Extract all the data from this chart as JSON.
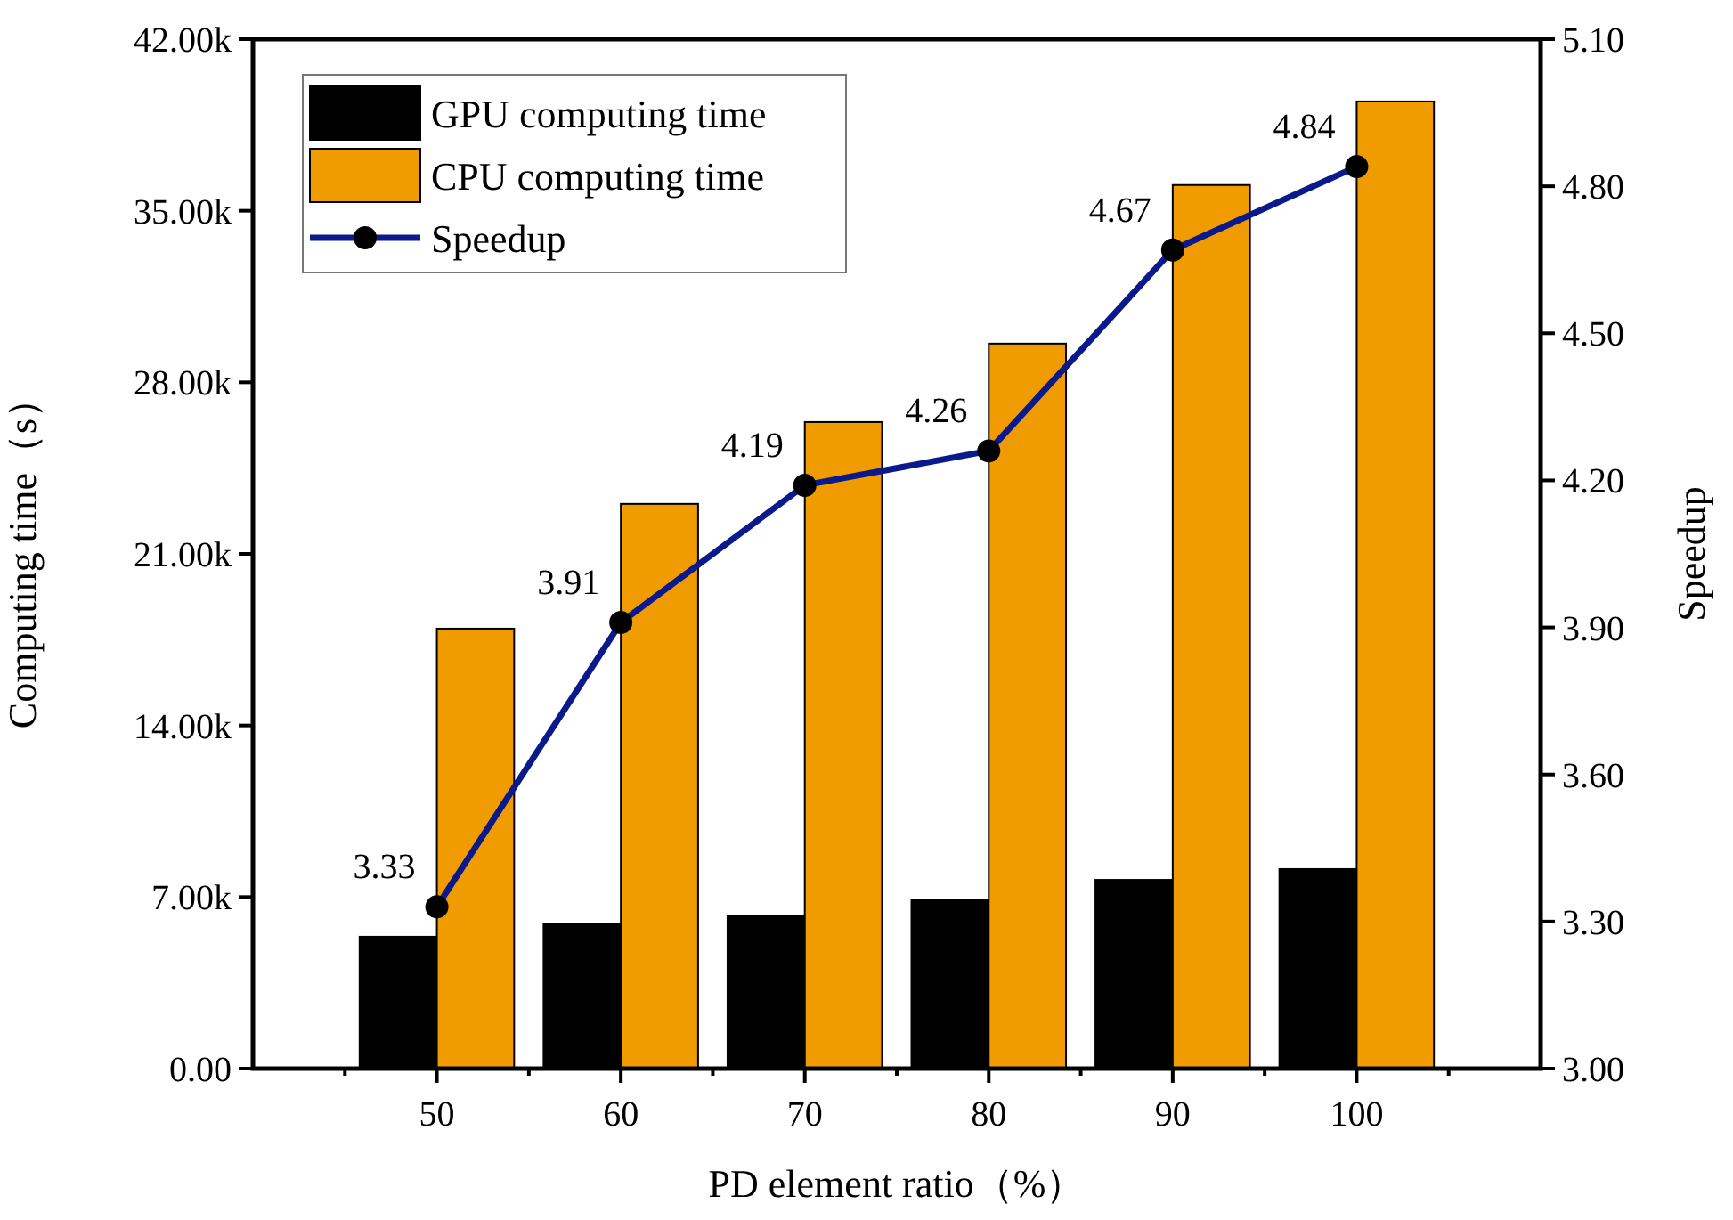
{
  "chart_data": {
    "type": "bar",
    "xlabel": "PD element ratio（%）",
    "ylabel": "Computing time（s）",
    "y2label": "Speedup",
    "x": [
      50,
      60,
      70,
      80,
      90,
      100
    ],
    "xlim": [
      40,
      110
    ],
    "xticks": [
      {
        "value": 45,
        "label": null
      },
      50,
      {
        "value": 55,
        "label": null
      },
      60,
      {
        "value": 65,
        "label": null
      },
      70,
      {
        "value": 75,
        "label": null
      },
      80,
      {
        "value": 85,
        "label": null
      },
      90,
      {
        "value": 95,
        "label": null
      },
      100,
      {
        "value": 105,
        "label": null
      }
    ],
    "ylim": [
      0,
      42000
    ],
    "yticks": [
      {
        "value": 0,
        "label": "0.00"
      },
      {
        "value": 7000,
        "label": "7.00k"
      },
      {
        "value": 14000,
        "label": "14.00k"
      },
      {
        "value": 21000,
        "label": "21.00k"
      },
      {
        "value": 28000,
        "label": "28.00k"
      },
      {
        "value": 35000,
        "label": "35.00k"
      },
      {
        "value": 42000,
        "label": "42.00k"
      }
    ],
    "y2lim": [
      3.0,
      5.1
    ],
    "y2ticks": [
      {
        "value": 3.0,
        "label": "3.00"
      },
      {
        "value": 3.3,
        "label": "3.30"
      },
      {
        "value": 3.6,
        "label": "3.60"
      },
      {
        "value": 3.9,
        "label": "3.90"
      },
      {
        "value": 4.2,
        "label": "4.20"
      },
      {
        "value": 4.5,
        "label": "4.50"
      },
      {
        "value": 4.8,
        "label": "4.80"
      },
      {
        "value": 5.1,
        "label": "5.10"
      }
    ],
    "legend": "top left",
    "grid": false,
    "series": [
      {
        "name": "GPU computing time",
        "color": "#000000",
        "values": [
          5380,
          5890,
          6250,
          6900,
          7700,
          8140
        ]
      },
      {
        "name": "CPU computing time",
        "color": "#f09c00",
        "values": [
          17950,
          23040,
          26380,
          29580,
          36050,
          39460
        ]
      },
      {
        "name": "Speedup",
        "type": "line",
        "axis": "y2",
        "color": "#0a1a8c",
        "marker": "circle",
        "values": [
          3.33,
          3.91,
          4.19,
          4.26,
          4.67,
          4.84
        ],
        "value_labels": [
          "3.33",
          "3.91",
          "4.19",
          "4.26",
          "4.67",
          "4.84"
        ]
      }
    ]
  }
}
